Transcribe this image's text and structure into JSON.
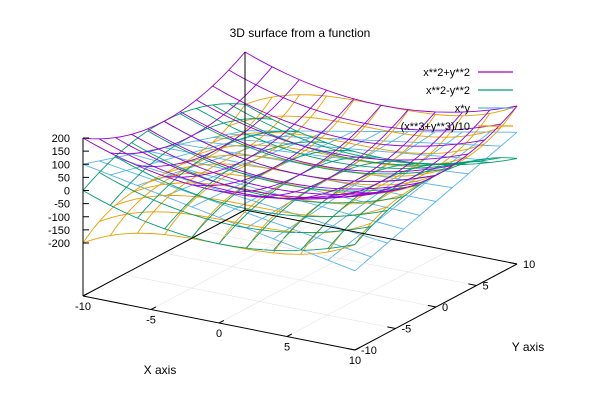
{
  "chart_data": {
    "type": "surface3d",
    "title": "3D surface from a function",
    "xlabel": "X axis",
    "ylabel": "Y axis",
    "zlabel": "",
    "xlim": [
      -10,
      10
    ],
    "ylim": [
      -10,
      10
    ],
    "zlim": [
      -200,
      200
    ],
    "x_ticks": [
      -10,
      -5,
      0,
      5,
      10
    ],
    "y_ticks": [
      -10,
      -5,
      0,
      5,
      10
    ],
    "z_ticks": [
      200,
      150,
      100,
      50,
      0,
      -50,
      -100,
      -150,
      -200
    ],
    "grid": true,
    "legend": "top-right",
    "series": [
      {
        "name": "x**2+y**2",
        "expression": "x**2+y**2",
        "color": "#9400d3"
      },
      {
        "name": "x**2-y**2",
        "expression": "x**2-y**2",
        "color": "#009e73"
      },
      {
        "name": "x*y",
        "expression": "x*y",
        "color": "#56b4e9"
      },
      {
        "name": "(x**3+y**3)/10",
        "expression": "(x**3+y**3)/10",
        "color": "#e69f00"
      }
    ]
  }
}
